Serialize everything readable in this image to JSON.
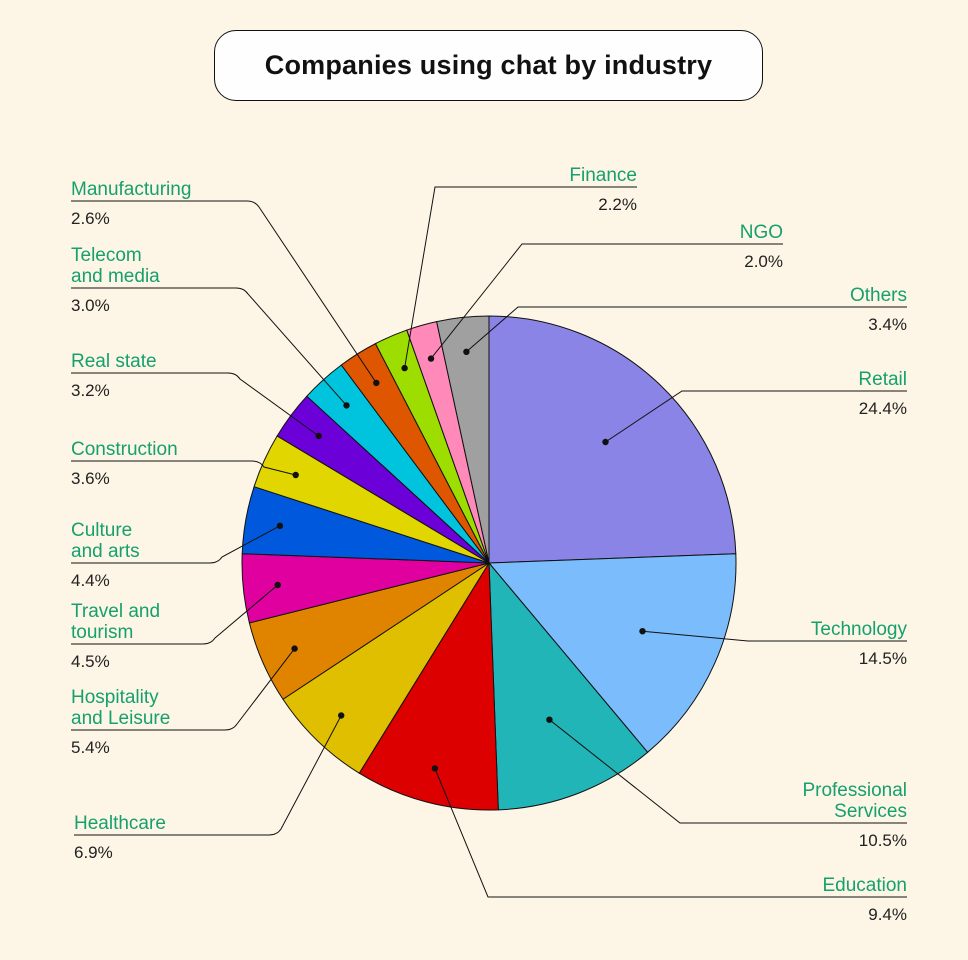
{
  "title": "Companies using chat by industry",
  "colors": {
    "background": "#fdf6e6",
    "label": "#16a06e",
    "text": "#222222"
  },
  "chart_data": {
    "type": "pie",
    "title": "Companies using chat by industry",
    "slices": [
      {
        "label": "Retail",
        "lines": [
          "Retail"
        ],
        "value": 24.4,
        "display": "24.4%",
        "color": "#8a84e6"
      },
      {
        "label": "Technology",
        "lines": [
          "Technology"
        ],
        "value": 14.5,
        "display": "14.5%",
        "color": "#7bbdfc"
      },
      {
        "label": "Professional Services",
        "lines": [
          "Professional",
          "Services"
        ],
        "value": 10.5,
        "display": "10.5%",
        "color": "#21b5b8"
      },
      {
        "label": "Education",
        "lines": [
          "Education"
        ],
        "value": 9.4,
        "display": "9.4%",
        "color": "#dc0000"
      },
      {
        "label": "Healthcare",
        "lines": [
          "Healthcare"
        ],
        "value": 6.9,
        "display": "6.9%",
        "color": "#e0bf00"
      },
      {
        "label": "Hospitality and Leisure",
        "lines": [
          "Hospitality",
          "and Leisure"
        ],
        "value": 5.4,
        "display": "5.4%",
        "color": "#e08400"
      },
      {
        "label": "Travel and tourism",
        "lines": [
          "Travel and",
          "tourism"
        ],
        "value": 4.5,
        "display": "4.5%",
        "color": "#e000a0"
      },
      {
        "label": "Culture and arts",
        "lines": [
          "Culture",
          "and arts"
        ],
        "value": 4.4,
        "display": "4.4%",
        "color": "#0059dd"
      },
      {
        "label": "Construction",
        "lines": [
          "Construction"
        ],
        "value": 3.6,
        "display": "3.6%",
        "color": "#e2d600"
      },
      {
        "label": "Real state",
        "lines": [
          "Real state"
        ],
        "value": 3.2,
        "display": "3.2%",
        "color": "#6c00d9"
      },
      {
        "label": "Telecom and media",
        "lines": [
          "Telecom",
          "and media"
        ],
        "value": 3.0,
        "display": "3.0%",
        "color": "#00c4de"
      },
      {
        "label": "Manufacturing",
        "lines": [
          "Manufacturing"
        ],
        "value": 2.6,
        "display": "2.6%",
        "color": "#df5600"
      },
      {
        "label": "Finance",
        "lines": [
          "Finance"
        ],
        "value": 2.2,
        "display": "2.2%",
        "color": "#9ddd00"
      },
      {
        "label": "NGO",
        "lines": [
          "NGO"
        ],
        "value": 2.0,
        "display": "2.0%",
        "color": "#ff8ab9"
      },
      {
        "label": "Others",
        "lines": [
          "Others"
        ],
        "value": 3.4,
        "display": "3.4%",
        "color": "#a0a0a0"
      }
    ]
  }
}
